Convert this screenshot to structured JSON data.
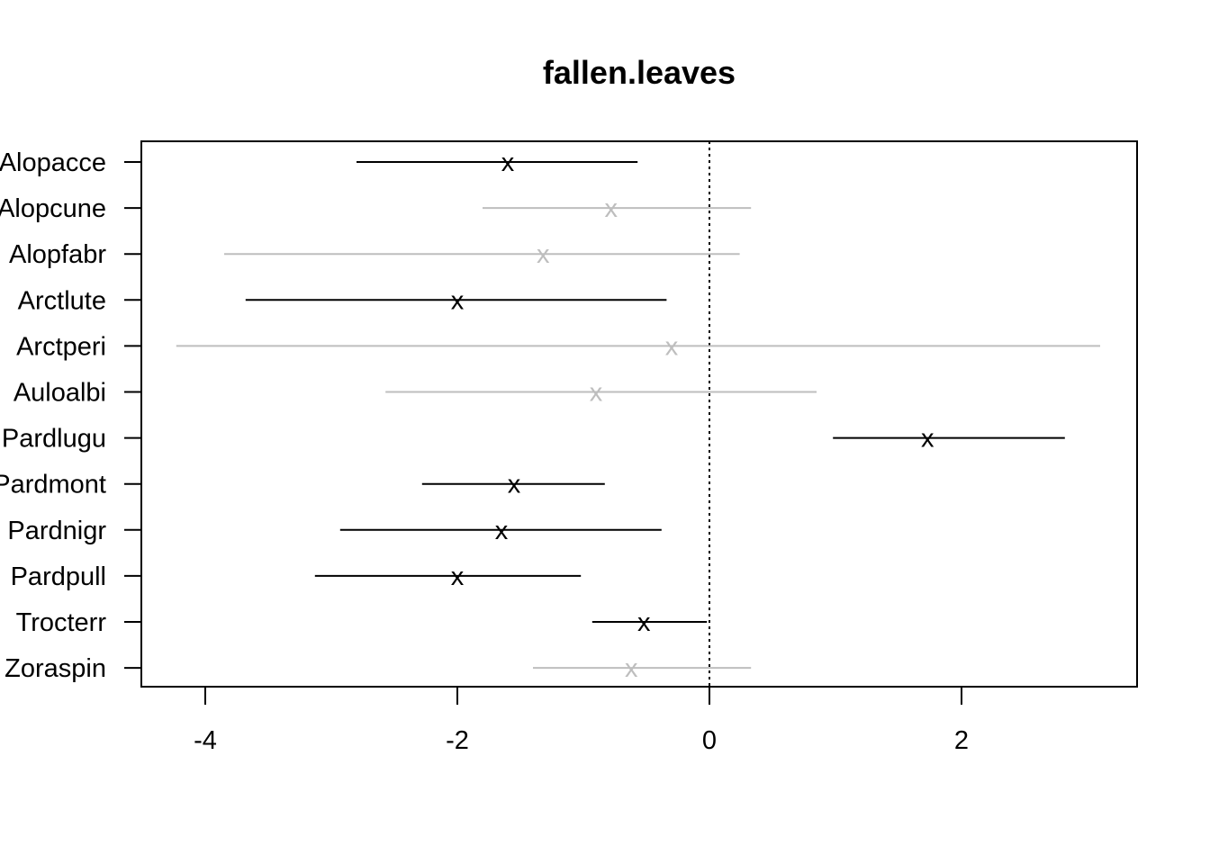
{
  "chart_data": {
    "type": "scatter",
    "title": "fallen.leaves",
    "xlabel": "",
    "ylabel": "",
    "xlim": [
      -4.5,
      3.4
    ],
    "x_ticks": [
      -4,
      -2,
      0,
      2
    ],
    "x_tick_labels": [
      "-4",
      "-2",
      "0",
      "2"
    ],
    "reference_line_x": 0,
    "marker_symbol": "x",
    "significant_color": "#000000",
    "nonsignificant_color": "#bebebe",
    "categories": [
      "Alopacce",
      "Alopcune",
      "Alopfabr",
      "Arctlute",
      "Arctperi",
      "Auloalbi",
      "Pardlugu",
      "Pardmont",
      "Pardnigr",
      "Pardpull",
      "Trocterr",
      "Zoraspin"
    ],
    "series": [
      {
        "estimate": [
          -1.6,
          -0.78,
          -1.32,
          -2.0,
          -0.3,
          -0.9,
          1.73,
          -1.55,
          -1.65,
          -2.0,
          -0.52,
          -0.62
        ],
        "lower": [
          -2.8,
          -1.8,
          -3.85,
          -3.68,
          -4.23,
          -2.57,
          0.98,
          -2.28,
          -2.93,
          -3.13,
          -0.93,
          -1.4
        ],
        "upper": [
          -0.57,
          0.33,
          0.24,
          -0.34,
          3.1,
          0.85,
          2.82,
          -0.83,
          -0.38,
          -1.02,
          -0.02,
          0.33
        ],
        "significant": [
          true,
          false,
          false,
          true,
          false,
          false,
          true,
          true,
          true,
          true,
          true,
          false
        ]
      }
    ]
  }
}
